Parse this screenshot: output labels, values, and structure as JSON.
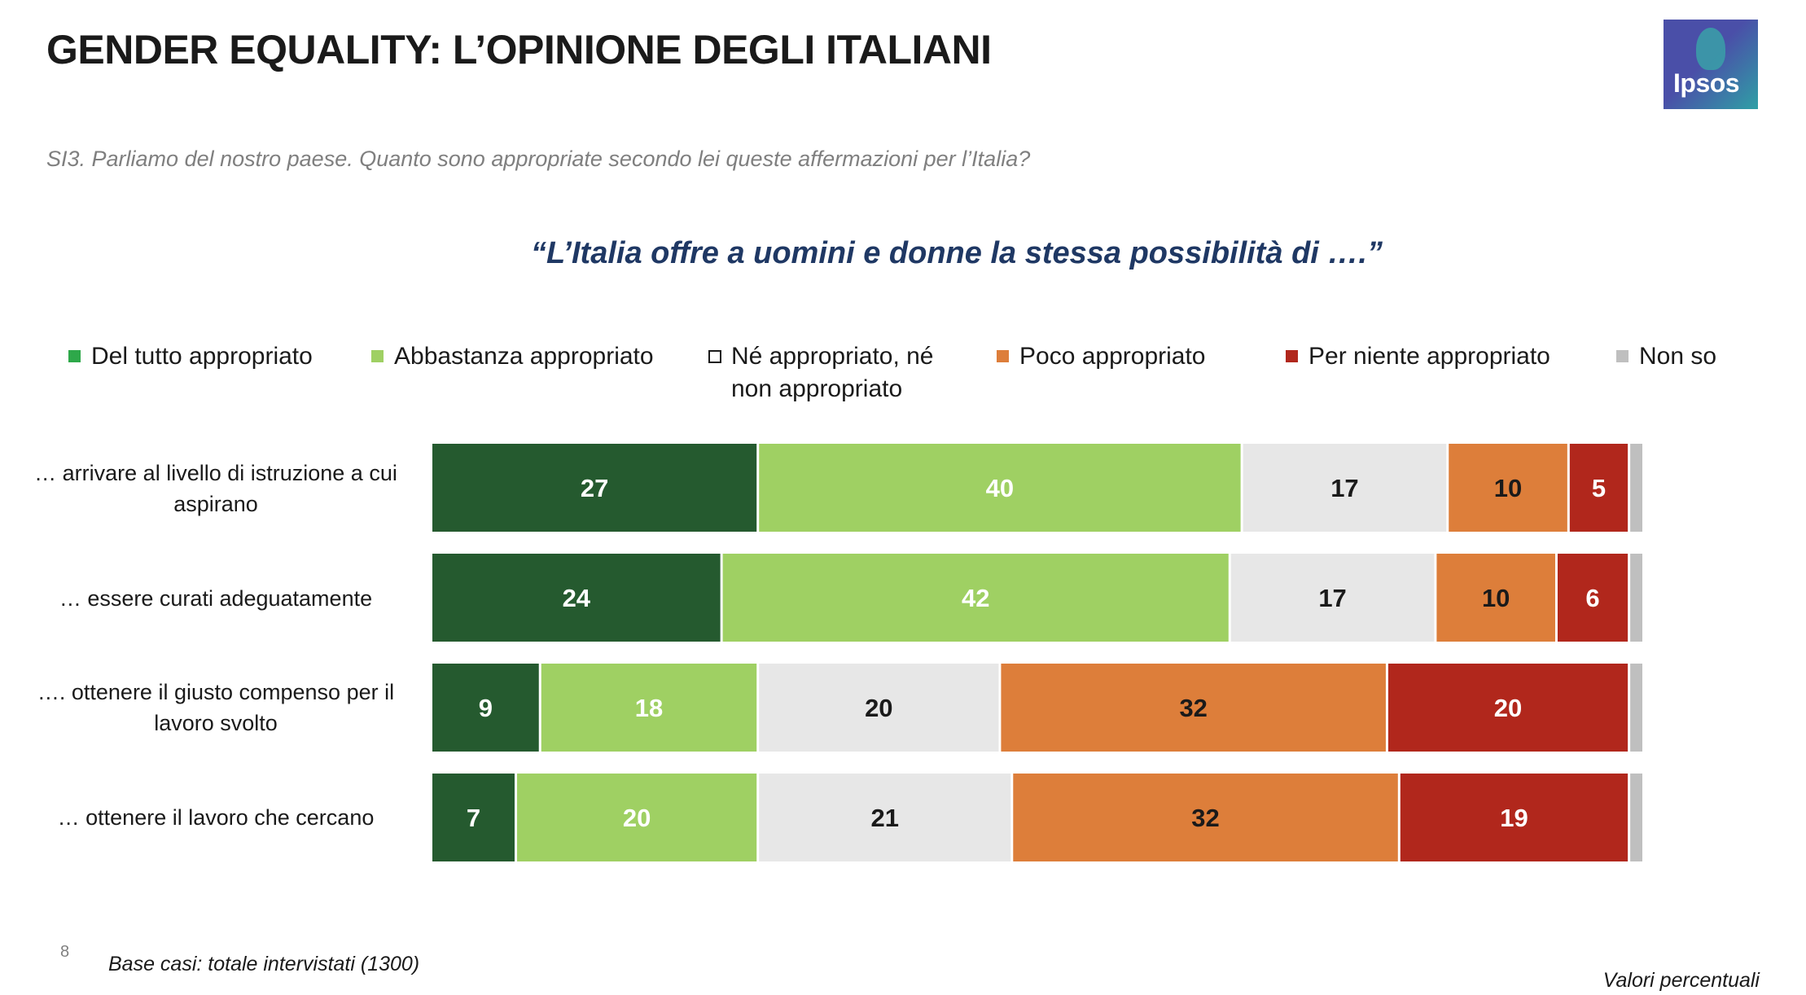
{
  "header": {
    "title": "GENDER EQUALITY: L’OPINIONE DEGLI ITALIANI",
    "logo_text": "Ipsos"
  },
  "question": "SI3. Parliamo del nostro paese. Quanto sono appropriate secondo lei queste affermazioni per l’Italia?",
  "footer": {
    "page_number": "8",
    "base": "Base casi: totale intervistati (1300)",
    "unit": "Valori percentuali"
  },
  "colors": {
    "del_tutto": "#255a2f",
    "abbastanza": "#9fd063",
    "ne_ne": "#e7e7e7",
    "poco": "#dd7e3a",
    "per_niente": "#b1271c",
    "non_so": "#bfbfbf"
  },
  "chart_data": {
    "type": "bar",
    "orientation": "horizontal",
    "stacked": true,
    "title": "“L’Italia offre a uomini e donne la stessa possibilità di ….”",
    "xlim": [
      0,
      100
    ],
    "legend_position": "top",
    "categories": [
      "… arrivare al livello di istruzione a cui aspirano",
      "… essere curati adeguatamente",
      "…. ottenere il giusto compenso per il lavoro svolto",
      "… ottenere il lavoro che cercano"
    ],
    "series": [
      {
        "name": "Del tutto appropriato",
        "color": "#255a2f",
        "label_color": "#ffffff",
        "values": [
          27,
          24,
          9,
          7
        ]
      },
      {
        "name": "Abbastanza appropriato",
        "color": "#9fd063",
        "label_color": "#ffffff",
        "values": [
          40,
          42,
          18,
          20
        ]
      },
      {
        "name": "Né appropriato, né non appropriato",
        "color": "#e7e7e7",
        "label_color": "#1a1a1a",
        "values": [
          17,
          17,
          20,
          21
        ]
      },
      {
        "name": "Poco appropriato",
        "color": "#dd7e3a",
        "label_color": "#1a1a1a",
        "values": [
          10,
          10,
          32,
          32
        ]
      },
      {
        "name": "Per niente appropriato",
        "color": "#b1271c",
        "label_color": "#ffffff",
        "values": [
          5,
          6,
          20,
          19
        ]
      },
      {
        "name": "Non so",
        "color": "#bfbfbf",
        "label_color": "#1a1a1a",
        "values": [
          1,
          1,
          1,
          1
        ]
      }
    ]
  }
}
